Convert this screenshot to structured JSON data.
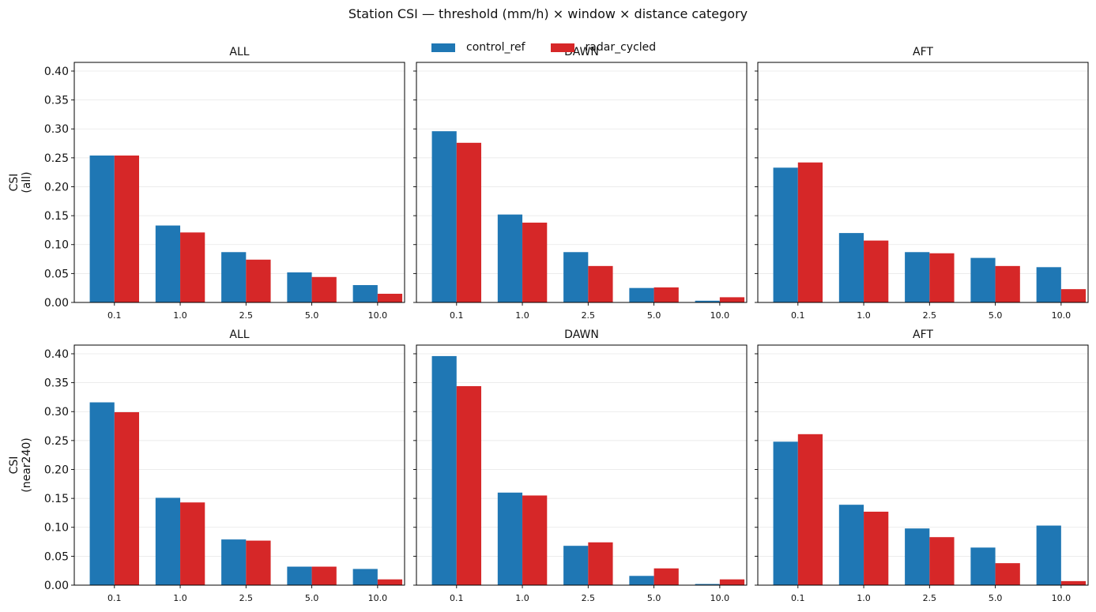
{
  "title": "Station CSI — threshold (mm/h) × window × distance category",
  "colors": {
    "control_ref": "#1f77b4",
    "radar_cycled": "#d62728"
  },
  "legend": [
    {
      "key": "control_ref",
      "label": "control_ref"
    },
    {
      "key": "radar_cycled",
      "label": "radar_cycled"
    }
  ],
  "chart_data": [
    {
      "type": "bar",
      "title": "ALL",
      "ylabel": "CSI\n(all)",
      "ylim": [
        0,
        0.415
      ],
      "yticks": [
        "0.00",
        "0.05",
        "0.10",
        "0.15",
        "0.20",
        "0.25",
        "0.30",
        "0.35",
        "0.40"
      ],
      "categories": [
        "0.1",
        "1.0",
        "2.5",
        "5.0",
        "10.0"
      ],
      "series": [
        {
          "name": "control_ref",
          "values": [
            0.254,
            0.133,
            0.087,
            0.052,
            0.03
          ]
        },
        {
          "name": "radar_cycled",
          "values": [
            0.254,
            0.121,
            0.074,
            0.044,
            0.015
          ]
        }
      ]
    },
    {
      "type": "bar",
      "title": "DAWN",
      "ylabel": "",
      "ylim": [
        0,
        0.415
      ],
      "categories": [
        "0.1",
        "1.0",
        "2.5",
        "5.0",
        "10.0"
      ],
      "series": [
        {
          "name": "control_ref",
          "values": [
            0.296,
            0.152,
            0.087,
            0.025,
            0.003
          ]
        },
        {
          "name": "radar_cycled",
          "values": [
            0.276,
            0.138,
            0.063,
            0.026,
            0.009
          ]
        }
      ]
    },
    {
      "type": "bar",
      "title": "AFT",
      "ylabel": "",
      "ylim": [
        0,
        0.415
      ],
      "categories": [
        "0.1",
        "1.0",
        "2.5",
        "5.0",
        "10.0"
      ],
      "series": [
        {
          "name": "control_ref",
          "values": [
            0.233,
            0.12,
            0.087,
            0.077,
            0.061
          ]
        },
        {
          "name": "radar_cycled",
          "values": [
            0.242,
            0.107,
            0.085,
            0.063,
            0.023
          ]
        }
      ]
    },
    {
      "type": "bar",
      "title": "ALL",
      "ylabel": "CSI\n(near240)",
      "ylim": [
        0,
        0.415
      ],
      "yticks": [
        "0.00",
        "0.05",
        "0.10",
        "0.15",
        "0.20",
        "0.25",
        "0.30",
        "0.35",
        "0.40"
      ],
      "categories": [
        "0.1",
        "1.0",
        "2.5",
        "5.0",
        "10.0"
      ],
      "series": [
        {
          "name": "control_ref",
          "values": [
            0.316,
            0.151,
            0.079,
            0.032,
            0.028
          ]
        },
        {
          "name": "radar_cycled",
          "values": [
            0.299,
            0.143,
            0.077,
            0.032,
            0.01
          ]
        }
      ]
    },
    {
      "type": "bar",
      "title": "DAWN",
      "ylabel": "",
      "ylim": [
        0,
        0.415
      ],
      "categories": [
        "0.1",
        "1.0",
        "2.5",
        "5.0",
        "10.0"
      ],
      "series": [
        {
          "name": "control_ref",
          "values": [
            0.396,
            0.16,
            0.068,
            0.016,
            0.002
          ]
        },
        {
          "name": "radar_cycled",
          "values": [
            0.344,
            0.155,
            0.074,
            0.029,
            0.01
          ]
        }
      ]
    },
    {
      "type": "bar",
      "title": "AFT",
      "ylabel": "",
      "ylim": [
        0,
        0.415
      ],
      "categories": [
        "0.1",
        "1.0",
        "2.5",
        "5.0",
        "10.0"
      ],
      "series": [
        {
          "name": "control_ref",
          "values": [
            0.248,
            0.139,
            0.098,
            0.065,
            0.103
          ]
        },
        {
          "name": "radar_cycled",
          "values": [
            0.261,
            0.127,
            0.083,
            0.038,
            0.007
          ]
        }
      ]
    }
  ]
}
